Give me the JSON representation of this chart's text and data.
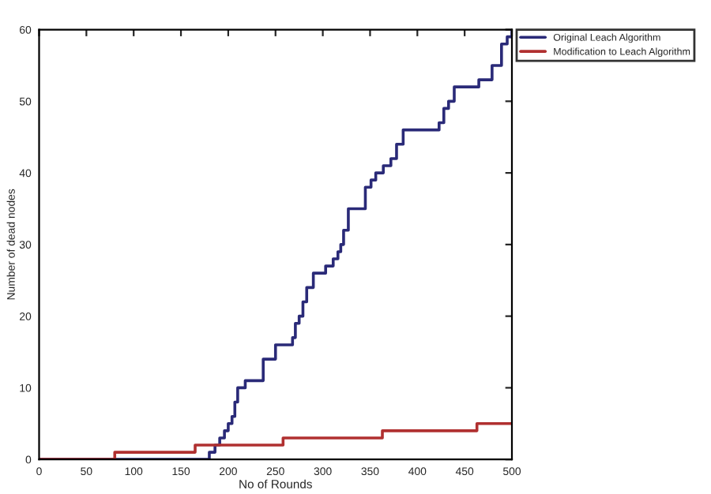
{
  "chart_data": {
    "type": "step",
    "xlabel": "No of Rounds",
    "ylabel": "Number of dead nodes",
    "series": [
      {
        "name": "Original Leach Algorithm",
        "color": "#2a2a78",
        "x": [
          0,
          180,
          186,
          191,
          196,
          200,
          204,
          207,
          210,
          218,
          237,
          250,
          268,
          271,
          275,
          279,
          283,
          290,
          303,
          311,
          316,
          319,
          322,
          327,
          345,
          351,
          356,
          364,
          372,
          378,
          385,
          423,
          428,
          433,
          439,
          465,
          479,
          489,
          495,
          500
        ],
        "values": [
          0,
          1,
          2,
          3,
          4,
          5,
          6,
          8,
          10,
          11,
          14,
          16,
          17,
          19,
          20,
          22,
          24,
          26,
          27,
          28,
          29,
          30,
          32,
          35,
          38,
          39,
          40,
          41,
          42,
          44,
          46,
          47,
          49,
          50,
          52,
          53,
          55,
          58,
          59,
          60
        ]
      },
      {
        "name": "Modification to Leach Algorithm",
        "color": "#b03030",
        "x": [
          0,
          80,
          165,
          258,
          363,
          463,
          500
        ],
        "values": [
          0,
          1,
          2,
          3,
          4,
          5,
          5
        ]
      }
    ],
    "xlim": [
      0,
      500
    ],
    "xticks": [
      0,
      50,
      100,
      150,
      200,
      250,
      300,
      350,
      400,
      450,
      500
    ],
    "ylim": [
      0,
      60
    ],
    "yticks": [
      0,
      10,
      20,
      30,
      40,
      50,
      60
    ],
    "grid": false,
    "legend": "top right"
  }
}
